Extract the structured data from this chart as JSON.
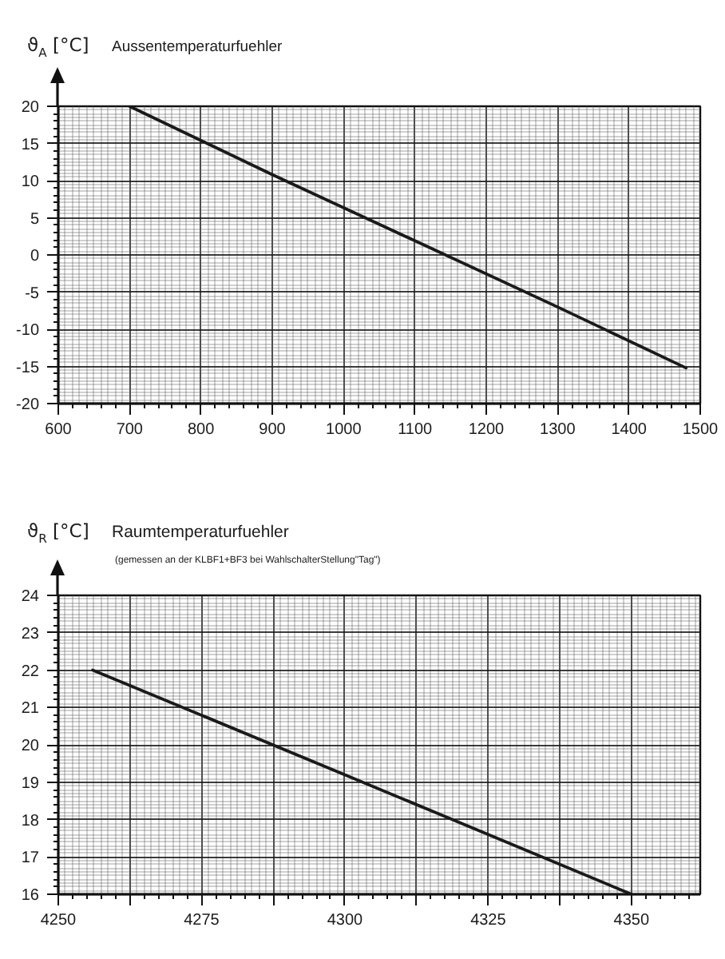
{
  "chart_data": [
    {
      "type": "line",
      "title": "Aussentemperaturfuehler",
      "ylabel": "ϑ$_{A}$ [°C]",
      "x": [
        700,
        900,
        1100,
        1300,
        1480
      ],
      "series": [
        {
          "color": "#1a1a1a",
          "values": [
            20,
            10.8,
            1.9,
            -7,
            -15.2
          ]
        }
      ],
      "xlim": [
        600,
        1500
      ],
      "ylim": [
        -20,
        20
      ],
      "xticks": [
        600,
        700,
        800,
        900,
        1000,
        1100,
        1200,
        1300,
        1400,
        1500
      ],
      "yticks": [
        -20,
        -15,
        -10,
        -5,
        0,
        5,
        10,
        15,
        20
      ],
      "grid": true
    },
    {
      "type": "line",
      "title": "Raumtemperaturfuehler",
      "subtitle": "(gemessen an der KLBF1+BF3 bei WahlschalterStellung\"Tag\")",
      "ylabel": "ϑ$_{R}$ [°C]",
      "x": [
        4256,
        4300,
        4350
      ],
      "series": [
        {
          "color": "#1a1a1a",
          "values": [
            22,
            19.2,
            16
          ]
        }
      ],
      "xlim": [
        4250,
        4362
      ],
      "ylim": [
        16,
        24
      ],
      "xticks": [
        4250,
        {
          "value": 4262.5,
          "label": null
        },
        4275,
        {
          "value": 4287.5,
          "label": null
        },
        4300,
        {
          "value": 4312.5,
          "label": null
        },
        4325,
        {
          "value": 4337.5,
          "label": null
        },
        4350
      ],
      "yticks": [
        16,
        17,
        18,
        19,
        20,
        21,
        22,
        23,
        24
      ],
      "grid": true
    }
  ]
}
